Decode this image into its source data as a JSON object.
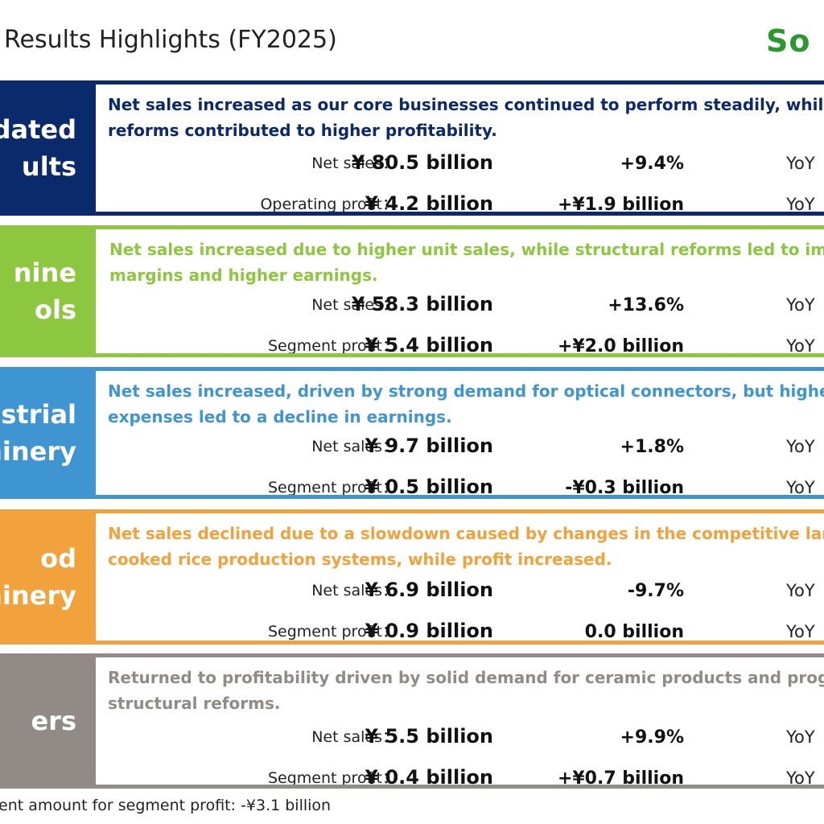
{
  "page": {
    "title": "Results Highlights (FY2025)",
    "logo": "So",
    "footnote": "ent amount for segment profit: -¥3.1 billion"
  },
  "colors": {
    "consolidated": "#0b2a6b",
    "machine_tools": "#8dc63f",
    "industrial_machinery": "#3f95d1",
    "food_machinery": "#f2a23c",
    "others": "#928b85",
    "logo": "#2b9a2b"
  },
  "sections": [
    {
      "id": "consolidated",
      "label_lines": [
        "idated",
        "ults"
      ],
      "summary_lines": [
        "Net sales increased as our core businesses continued to perform steadily, while st",
        "reforms contributed to higher profitability."
      ],
      "metrics": [
        {
          "label": "Net sales：",
          "value": "¥ 80.5 billion",
          "change": "+9.4%",
          "yoy": "YoY"
        },
        {
          "label": "Operating profit：",
          "value": "¥ 4.2 billion",
          "change": "+¥1.9 billion",
          "yoy": "YoY"
        }
      ]
    },
    {
      "id": "machine_tools",
      "label_lines": [
        "nine",
        "ols"
      ],
      "summary_lines": [
        "Net sales increased due to higher unit sales, while structural reforms led to impro",
        "margins and higher earnings."
      ],
      "metrics": [
        {
          "label": "Net sales：",
          "value": "¥ 58.3 billion",
          "change": "+13.6%",
          "yoy": "YoY"
        },
        {
          "label": "Segment profit：",
          "value": "¥ 5.4 billion",
          "change": "+¥2.0 billion",
          "yoy": "YoY"
        }
      ]
    },
    {
      "id": "industrial_machinery",
      "label_lines": [
        "strial",
        "hinery"
      ],
      "summary_lines": [
        "Net sales increased, driven by strong demand for optical connectors, but higher S",
        "expenses led to a decline in earnings."
      ],
      "metrics": [
        {
          "label": "Net sales：",
          "value": "¥ 9.7 billion",
          "change": "+1.8%",
          "yoy": "YoY"
        },
        {
          "label": "Segment profit：",
          "value": "¥ 0.5 billion",
          "change": "-¥0.3 billion",
          "yoy": "YoY"
        }
      ]
    },
    {
      "id": "food_machinery",
      "label_lines": [
        "od",
        "hinery"
      ],
      "summary_lines": [
        "Net sales declined due to a slowdown caused by changes in the competitive lands",
        "cooked rice production systems, while profit increased."
      ],
      "metrics": [
        {
          "label": "Net sales：",
          "value": "¥ 6.9 billion",
          "change": "-9.7%",
          "yoy": "YoY"
        },
        {
          "label": "Segment profit：",
          "value": "¥ 0.9 billion",
          "change": "0.0 billion",
          "yoy": "YoY"
        }
      ]
    },
    {
      "id": "others",
      "label_lines": [
        "ers"
      ],
      "summary_lines": [
        "Returned to profitability driven by solid demand for ceramic products and progre",
        "structural reforms."
      ],
      "metrics": [
        {
          "label": "Net sales：",
          "value": "¥ 5.5 billion",
          "change": "+9.9%",
          "yoy": "YoY"
        },
        {
          "label": "Segment profit：",
          "value": "¥ 0.4 billion",
          "change": "+¥0.7 billion",
          "yoy": "YoY"
        }
      ]
    }
  ]
}
